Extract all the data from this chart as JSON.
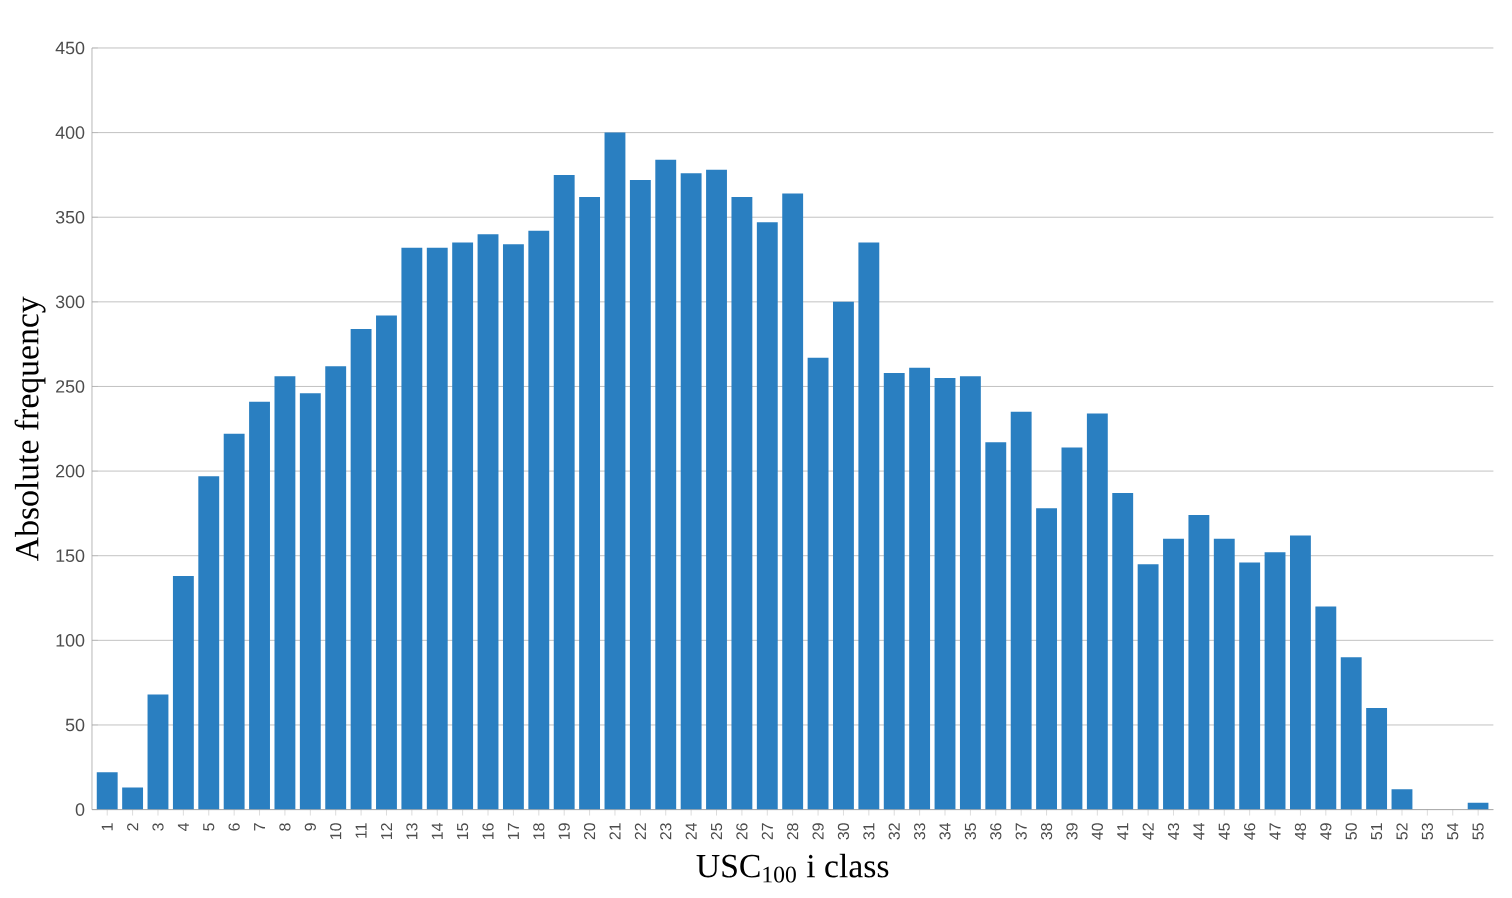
{
  "chart_data": {
    "type": "bar",
    "xlabel": "USC$_{100}$ i class",
    "ylabel": "Absolute frequency",
    "categories": [
      "1",
      "2",
      "3",
      "4",
      "5",
      "6",
      "7",
      "8",
      "9",
      "10",
      "11",
      "12",
      "13",
      "14",
      "15",
      "16",
      "17",
      "18",
      "19",
      "20",
      "21",
      "22",
      "23",
      "24",
      "25",
      "26",
      "27",
      "28",
      "29",
      "30",
      "31",
      "32",
      "33",
      "34",
      "35",
      "36",
      "37",
      "38",
      "39",
      "40",
      "41",
      "42",
      "43",
      "44",
      "45",
      "46",
      "47",
      "48",
      "49",
      "50",
      "51",
      "52",
      "53",
      "54",
      "55"
    ],
    "values": [
      22,
      13,
      68,
      138,
      197,
      222,
      241,
      256,
      246,
      262,
      284,
      292,
      332,
      332,
      335,
      340,
      334,
      342,
      375,
      362,
      400,
      372,
      384,
      376,
      378,
      362,
      347,
      364,
      267,
      300,
      335,
      258,
      261,
      255,
      256,
      217,
      235,
      178,
      214,
      234,
      187,
      145,
      160,
      174,
      160,
      146,
      152,
      162,
      120,
      90,
      60,
      12,
      0,
      0,
      4
    ],
    "color": "#2a7fc1",
    "ylim": [
      0,
      450
    ],
    "yticks": [
      0,
      50,
      100,
      150,
      200,
      250,
      300,
      350,
      400,
      450
    ],
    "grid": "y"
  }
}
